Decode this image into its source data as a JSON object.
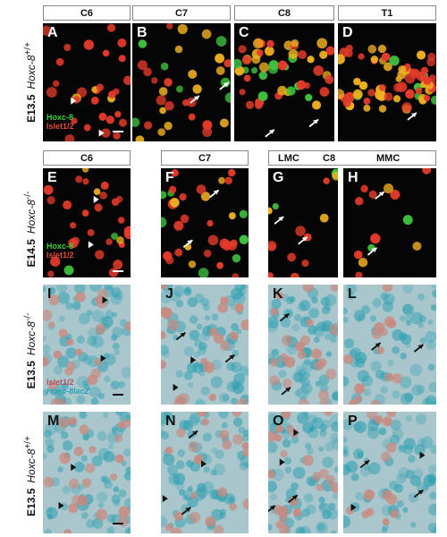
{
  "headers": {
    "row1": [
      "C6",
      "C7",
      "C8",
      "T1"
    ],
    "row2": [
      "C6",
      "C7",
      "C8"
    ],
    "lmc": "LMC",
    "mmc": "MMC"
  },
  "row_labels": [
    {
      "age": "E13.5",
      "gene": "Hoxc-8",
      "genotype": "+/+"
    },
    {
      "age": "E14.5",
      "gene": "Hoxc-8",
      "genotype": "-/-"
    },
    {
      "age": "E13.5",
      "gene": "Hoxc-8",
      "genotype": "-/-"
    },
    {
      "age": "E13.5",
      "gene": "Hoxc-8",
      "genotype": "+/+"
    }
  ],
  "panels": {
    "A": {
      "label": "A"
    },
    "B": {
      "label": "B"
    },
    "C": {
      "label": "C"
    },
    "D": {
      "label": "D"
    },
    "E": {
      "label": "E"
    },
    "F": {
      "label": "F"
    },
    "G": {
      "label": "G"
    },
    "H": {
      "label": "H"
    },
    "I": {
      "label": "I"
    },
    "J": {
      "label": "J"
    },
    "K": {
      "label": "K"
    },
    "L": {
      "label": "L"
    },
    "M": {
      "label": "M"
    },
    "N": {
      "label": "N"
    },
    "O": {
      "label": "O"
    },
    "P": {
      "label": "P"
    }
  },
  "legends": {
    "A": {
      "line1": "Hoxc-8",
      "line2": "Islet1/2"
    },
    "E": {
      "line1": "Hoxc-8",
      "line2": "Islet1/2"
    },
    "I": {
      "line1": "Islet1/2",
      "line2": "Hoxc-8lacZ"
    }
  },
  "colors": {
    "background_dark": "#050505",
    "background_light": "#a9c6cc",
    "islet_red": "#e33a2a",
    "hoxc8_green": "#3fc43f",
    "colabel_yellow": "#f0b020",
    "lacz_teal": "#2a9fb0",
    "islet_brown": "#c9897f"
  }
}
